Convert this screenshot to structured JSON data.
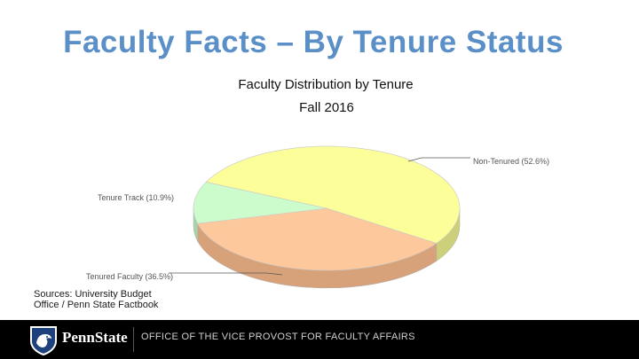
{
  "slide": {
    "title": "Faculty Facts – By Tenure Status",
    "sources": "Sources: University Budget Office / Penn State Factbook"
  },
  "footer": {
    "brand": "PennState",
    "office": "OFFICE OF THE VICE PROVOST FOR FACULTY AFFAIRS",
    "logo_icon": "nittany-lion-shield-icon"
  },
  "chart_data": {
    "type": "pie",
    "title": "Faculty Distribution by Tenure",
    "subtitle": "Fall 2016",
    "unit": "%",
    "style": "3d-tilted",
    "slices": [
      {
        "label": "Non-Tenured",
        "value": 52.6,
        "display": "Non-Tenured (52.6%)",
        "color": "#fcfe9a",
        "side": "#cdd07a"
      },
      {
        "label": "Tenured Faculty",
        "value": 36.5,
        "display": "Tenured Faculty (36.5%)",
        "color": "#fdc89c",
        "side": "#d7a27a"
      },
      {
        "label": "Tenure Track",
        "value": 10.9,
        "display": "Tenure Track (10.9%)",
        "color": "#ccfccc",
        "side": "#a7d4a7"
      }
    ]
  }
}
